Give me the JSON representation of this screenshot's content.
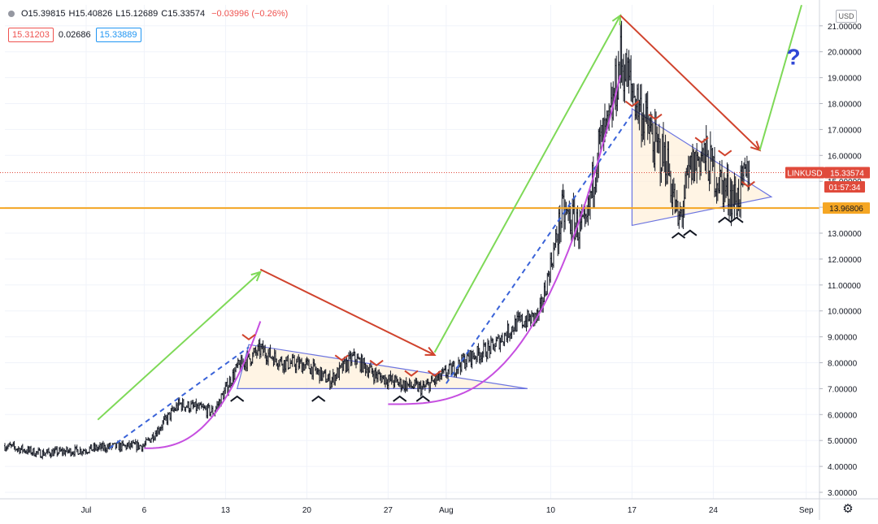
{
  "header": {
    "open": "O15.39815",
    "high": "H15.40826",
    "low": "L15.12689",
    "close": "C15.33574",
    "change": "−0.03996 (−0.26%)",
    "bid": "15.31203",
    "spread": "0.02686",
    "ask": "15.33889"
  },
  "axis": {
    "currency": "USD"
  },
  "labels": {
    "symbol": "LINKUSD",
    "last_price": "15.33574",
    "countdown": "01:57:34",
    "level_price": "13.96806",
    "question": "?"
  },
  "colors": {
    "up_arrow": "#7ed957",
    "down_arrow": "#d0432d",
    "trendline": "#6b74e0",
    "curve": "#c64fe0",
    "support_line": "#f5a623",
    "price_tag": "#e04a3b",
    "candles": "#131722",
    "question": "#2f46d6"
  },
  "chart_data": {
    "type": "line",
    "title": "",
    "xlabel": "",
    "ylabel": "",
    "ylim": [
      2.8,
      21.8
    ],
    "y_ticks": [
      "3.00000",
      "4.00000",
      "5.00000",
      "6.00000",
      "7.00000",
      "8.00000",
      "9.00000",
      "10.00000",
      "11.00000",
      "12.00000",
      "13.00000",
      "14.00000",
      "15.00000",
      "16.00000",
      "17.00000",
      "18.00000",
      "19.00000",
      "20.00000",
      "21.00000"
    ],
    "x_ticks": [
      "Jul",
      "6",
      "13",
      "20",
      "27",
      "Aug",
      "10",
      "17",
      "24",
      "Sep"
    ],
    "horizontal_levels": [
      13.96806
    ],
    "series": [
      {
        "x": [
          "06-24",
          "06-27",
          "06-30",
          "07-03",
          "07-06",
          "07-09",
          "07-12",
          "07-14",
          "07-16",
          "07-18",
          "07-20",
          "07-22",
          "07-24",
          "07-26",
          "07-28",
          "07-30",
          "08-01",
          "08-03",
          "08-05",
          "08-07",
          "08-09",
          "08-11",
          "08-13",
          "08-14",
          "08-15",
          "08-16",
          "08-17",
          "08-18",
          "08-19",
          "08-20",
          "08-21",
          "08-22",
          "08-23",
          "08-25",
          "08-26",
          "08-27"
        ],
        "values": [
          4.8,
          4.5,
          4.6,
          4.75,
          4.8,
          6.4,
          6.1,
          7.8,
          8.5,
          8.0,
          7.9,
          7.3,
          8.2,
          7.5,
          7.2,
          7.0,
          7.6,
          8.2,
          8.6,
          9.5,
          9.8,
          13.8,
          13.0,
          16.2,
          17.0,
          19.7,
          18.5,
          17.5,
          16.3,
          15.8,
          13.3,
          15.4,
          16.1,
          14.7,
          14.3,
          15.3
        ]
      }
    ]
  }
}
